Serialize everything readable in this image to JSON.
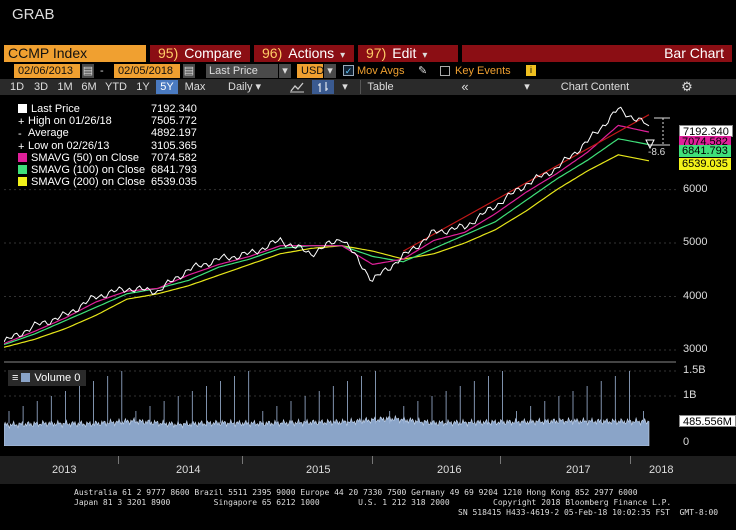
{
  "window": {
    "title": "GRAB"
  },
  "header": {
    "ticker": "CCMP Index",
    "compare": {
      "num": "95)",
      "label": "Compare"
    },
    "actions": {
      "num": "96)",
      "label": "Actions"
    },
    "edit": {
      "num": "97)",
      "label": "Edit"
    },
    "chart_type": "Bar Chart"
  },
  "controls": {
    "start_date": "02/06/2013",
    "end_date": "02/05/2018",
    "field": "Last Price",
    "currency": "USD",
    "mov_avgs_label": "Mov Avgs",
    "mov_avgs_checked": true,
    "key_events_label": "Key Events",
    "info_badge": "i"
  },
  "toolbar": {
    "periods": [
      "1D",
      "3D",
      "1M",
      "6M",
      "YTD",
      "1Y",
      "5Y",
      "Max"
    ],
    "selected_period": "5Y",
    "frequency": "Daily",
    "table_label": "Table",
    "collapse_icon": "double-chevron-left",
    "chart_content_label": "Chart Content",
    "settings_icon": "gear"
  },
  "legend": {
    "rows": [
      {
        "label": "Last Price",
        "value": "7192.340",
        "color": "#ffffff"
      },
      {
        "label": "High on 01/26/18",
        "value": "7505.772",
        "color": "#ffffff"
      },
      {
        "label": "Average",
        "value": "4892.197",
        "color": "#ffffff"
      },
      {
        "label": "Low on 02/26/13",
        "value": "3105.365",
        "color": "#ffffff"
      },
      {
        "label": "SMAVG (50) on Close",
        "value": "7074.582",
        "color": "#e0209a"
      },
      {
        "label": "SMAVG (100) on Close",
        "value": "6841.793",
        "color": "#3fe07a"
      },
      {
        "label": "SMAVG (200) on Close",
        "value": "6539.035",
        "color": "#f2f21a"
      }
    ]
  },
  "price_tags": {
    "last": "7192.340",
    "sma50": "7074.582",
    "sma100": "6841.793",
    "sma200": "6539.035",
    "drawdown": "-8.6"
  },
  "volume": {
    "label": "Volume",
    "value": "0",
    "last": "485.556M"
  },
  "chart_data": [
    {
      "type": "line",
      "title": "",
      "series_names": [
        "Last Price",
        "SMAVG (50) on Close",
        "SMAVG (100) on Close",
        "SMAVG (200) on Close"
      ],
      "x": [
        "2013-02",
        "2013-05",
        "2013-08",
        "2013-11",
        "2014-02",
        "2014-05",
        "2014-08",
        "2014-11",
        "2015-02",
        "2015-05",
        "2015-08",
        "2015-11",
        "2016-02",
        "2016-05",
        "2016-08",
        "2016-11",
        "2017-02",
        "2017-05",
        "2017-08",
        "2017-11",
        "2018-01",
        "2018-02"
      ],
      "close": [
        3150,
        3450,
        3650,
        4000,
        4150,
        4100,
        4500,
        4700,
        4800,
        5050,
        4800,
        5100,
        4300,
        4750,
        5200,
        5300,
        5700,
        6100,
        6400,
        6900,
        7500,
        7192
      ],
      "sma50": [
        3120,
        3350,
        3600,
        3900,
        4100,
        4150,
        4400,
        4600,
        4750,
        4950,
        4950,
        4950,
        4600,
        4700,
        5050,
        5200,
        5550,
        5950,
        6300,
        6700,
        7200,
        7075
      ],
      "sma100": [
        3100,
        3300,
        3550,
        3800,
        4050,
        4150,
        4300,
        4550,
        4700,
        4900,
        4950,
        4950,
        4750,
        4650,
        4900,
        5150,
        5400,
        5800,
        6200,
        6550,
        6950,
        6842
      ],
      "sma200": [
        3050,
        3200,
        3400,
        3650,
        3950,
        4050,
        4200,
        4400,
        4600,
        4800,
        4900,
        4950,
        4850,
        4700,
        4800,
        5000,
        5250,
        5600,
        6000,
        6350,
        6650,
        6539
      ],
      "y_ticks": [
        "3000",
        "4000",
        "5000",
        "6000"
      ],
      "ylim": [
        2850,
        7750
      ],
      "x_labels": [
        "2013",
        "2014",
        "2015",
        "2016",
        "2017",
        "2018"
      ]
    },
    {
      "type": "area",
      "title": "",
      "series_names": [
        "Volume"
      ],
      "x": [
        "2013-02",
        "2013-06",
        "2013-10",
        "2014-02",
        "2014-06",
        "2014-10",
        "2015-02",
        "2015-06",
        "2015-10",
        "2016-02",
        "2016-06",
        "2016-10",
        "2017-02",
        "2017-06",
        "2017-10",
        "2018-02"
      ],
      "values_billions": [
        0.42,
        0.45,
        0.44,
        0.5,
        0.43,
        0.46,
        0.45,
        0.47,
        0.48,
        0.55,
        0.46,
        0.47,
        0.48,
        0.5,
        0.49,
        0.49
      ],
      "y_ticks": [
        "1.5B",
        "1B",
        "0"
      ],
      "ylim": [
        0,
        1.6
      ]
    }
  ],
  "footer": {
    "line1": "Australia 61 2 9777 8600 Brazil 5511 2395 9000 Europe 44 20 7330 7500 Germany 49 69 9204 1210 Hong Kong 852 2977 6000",
    "line2": "Japan 81 3 3201 8900         Singapore 65 6212 1000        U.S. 1 212 318 2000         Copyright 2018 Bloomberg Finance L.P.",
    "line3": "SN 518415 H433-4619-2 05-Feb-18 10:02:35 FST  GMT-8:00"
  }
}
